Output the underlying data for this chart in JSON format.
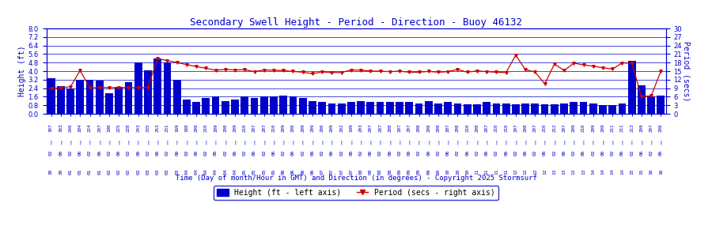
{
  "title": "Secondary Swell Height - Period - Direction - Buoy 46132",
  "xlabel": "Time (Day of month/Hour in GMT) and Direction (in degrees) - Copyright 2025 Stormsurf",
  "ylabel_left": "Height (ft)",
  "ylabel_right": "Period (secs)",
  "ylim_left": [
    0.0,
    8.0
  ],
  "ylim_right": [
    0.0,
    30.0
  ],
  "yticks_left": [
    0.0,
    0.8,
    1.6,
    2.4,
    3.2,
    4.0,
    4.8,
    5.6,
    6.4,
    7.2,
    8.0
  ],
  "yticks_right": [
    0.0,
    3.0,
    6.0,
    9.0,
    12.0,
    15.0,
    18.0,
    21.0,
    24.0,
    27.0,
    30.0
  ],
  "bar_color": "#0000cc",
  "line_color": "#cc0000",
  "background_color": "#ffffff",
  "grid_color": "#0000cc",
  "title_color": "#0000cc",
  "label_color": "#0000cc",
  "tick_color": "#0000cc",
  "directions": [
    307,
    303,
    240,
    204,
    224,
    207,
    190,
    225,
    228,
    243,
    235,
    253,
    231,
    169,
    188,
    208,
    210,
    209,
    208,
    209,
    210,
    207,
    207,
    210,
    209,
    208,
    209,
    209,
    200,
    209,
    202,
    199,
    203,
    207,
    207,
    208,
    207,
    207,
    208,
    208,
    208,
    207,
    208,
    210,
    208,
    207,
    210,
    210,
    207,
    208,
    207,
    210,
    212,
    207,
    209,
    210,
    209,
    209,
    211,
    211,
    213,
    209,
    207,
    208
  ],
  "hour_labels": [
    "02",
    "06",
    "02",
    "06",
    "02",
    "06",
    "02",
    "06",
    "02",
    "06",
    "02",
    "06",
    "02",
    "06",
    "02",
    "06",
    "02",
    "06",
    "02",
    "06",
    "02",
    "06",
    "02",
    "06",
    "02",
    "06",
    "02",
    "06",
    "02",
    "06",
    "02",
    "06",
    "02",
    "06",
    "02",
    "06",
    "02",
    "06",
    "02",
    "06",
    "02",
    "06",
    "02",
    "06",
    "02",
    "06",
    "02",
    "06",
    "02",
    "06",
    "02",
    "06",
    "02",
    "06",
    "02",
    "06",
    "02",
    "06",
    "02",
    "06",
    "02",
    "06",
    "02",
    "06"
  ],
  "day_labels": [
    "30",
    "30",
    "01",
    "01",
    "01",
    "01",
    "02",
    "02",
    "02",
    "02",
    "03",
    "03",
    "03",
    "03",
    "04",
    "04",
    "04",
    "04",
    "04",
    "04",
    "05",
    "05",
    "05",
    "05",
    "06",
    "06",
    "06",
    "06",
    "07",
    "07",
    "07",
    "07",
    "08",
    "08",
    "08",
    "08",
    "09",
    "09",
    "09",
    "09",
    "10",
    "10",
    "10",
    "10",
    "11",
    "11",
    "11",
    "11",
    "12",
    "12",
    "12",
    "12",
    "13",
    "13",
    "13",
    "13",
    "14",
    "14",
    "14",
    "14",
    "15",
    "15",
    "16",
    "16"
  ],
  "heights": [
    3.3,
    2.6,
    2.4,
    3.2,
    3.2,
    3.1,
    1.9,
    2.5,
    3.0,
    4.8,
    4.1,
    5.2,
    4.8,
    3.2,
    1.3,
    1.1,
    1.5,
    1.6,
    1.2,
    1.3,
    1.6,
    1.5,
    1.6,
    1.6,
    1.7,
    1.6,
    1.5,
    1.2,
    1.1,
    1.0,
    1.0,
    1.1,
    1.2,
    1.1,
    1.1,
    1.1,
    1.1,
    1.1,
    1.0,
    1.2,
    1.0,
    1.1,
    1.0,
    0.9,
    0.9,
    1.1,
    1.0,
    1.0,
    0.9,
    1.0,
    1.0,
    0.9,
    0.9,
    1.0,
    1.1,
    1.1,
    1.0,
    0.8,
    0.8,
    1.0,
    5.0,
    2.7,
    1.6,
    1.7
  ],
  "periods": [
    9.0,
    9.1,
    9.5,
    15.2,
    9.1,
    9.3,
    9.2,
    9.2,
    9.3,
    9.3,
    9.3,
    19.4,
    18.7,
    18.0,
    17.3,
    16.6,
    16.0,
    15.3,
    15.6,
    15.4,
    15.5,
    14.8,
    15.4,
    15.3,
    15.2,
    14.9,
    14.6,
    14.1,
    14.7,
    14.5,
    14.5,
    15.4,
    15.3,
    15.0,
    15.0,
    14.8,
    15.0,
    14.6,
    14.6,
    14.9,
    14.6,
    14.8,
    15.6,
    14.6,
    15.1,
    14.8,
    14.6,
    14.5,
    20.6,
    15.5,
    14.7,
    10.5,
    17.5,
    15.2,
    17.8,
    17.2,
    16.7,
    16.2,
    15.7,
    17.9,
    17.7,
    6.1,
    6.3,
    15.0
  ]
}
